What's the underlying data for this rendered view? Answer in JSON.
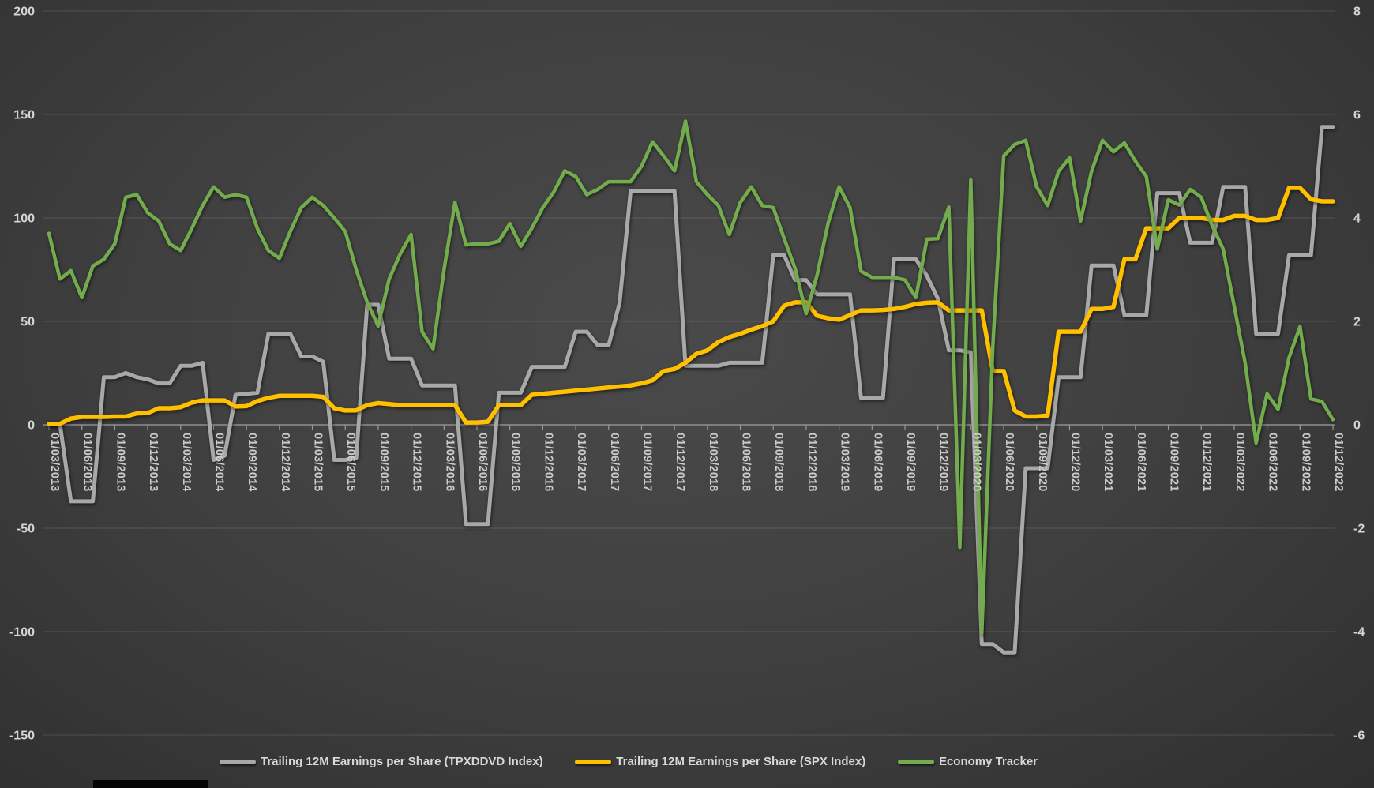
{
  "chart_data": {
    "type": "line",
    "title": "",
    "x_axis": {
      "tick_labels": [
        "01/03/2013",
        "01/06/2013",
        "01/09/2013",
        "01/12/2013",
        "01/03/2014",
        "01/06/2014",
        "01/09/2014",
        "01/12/2014",
        "01/03/2015",
        "01/06/2015",
        "01/09/2015",
        "01/12/2015",
        "01/03/2016",
        "01/06/2016",
        "01/09/2016",
        "01/12/2016",
        "01/03/2017",
        "01/06/2017",
        "01/09/2017",
        "01/12/2017",
        "01/03/2018",
        "01/06/2018",
        "01/09/2018",
        "01/12/2018",
        "01/03/2019",
        "01/06/2019",
        "01/09/2019",
        "01/12/2019",
        "01/03/2020",
        "01/06/2020",
        "01/09/2020",
        "01/12/2020",
        "01/03/2021",
        "01/06/2021",
        "01/09/2021",
        "01/12/2021",
        "01/03/2022",
        "01/06/2022",
        "01/09/2022",
        "01/12/2022"
      ],
      "months_per_label": 3,
      "label_rotation_deg": 90
    },
    "left_axis": {
      "ticks": [
        200,
        150,
        100,
        50,
        0,
        -50,
        -100,
        -150
      ],
      "range": [
        -150,
        200
      ]
    },
    "right_axis": {
      "ticks": [
        8,
        6,
        4,
        2,
        0,
        -2,
        -4,
        -6
      ],
      "range": [
        -6,
        8
      ]
    },
    "grid": "horizontal-only",
    "legend_position": "bottom",
    "series": [
      {
        "name": "Trailing 12M Earnings per Share (TPXDDVD Index)",
        "axis": "left",
        "color": "#a8a8a8",
        "values": [
          0.5,
          0.5,
          -37,
          -37,
          -37,
          23,
          23,
          25,
          23,
          22,
          20,
          20,
          28.5,
          28.5,
          30,
          -17,
          -15,
          14.5,
          15,
          15.5,
          44,
          44,
          44,
          33,
          33,
          30.5,
          -17,
          -17,
          -16,
          58,
          58,
          32,
          32,
          32,
          19,
          19,
          19,
          19,
          -48,
          -48,
          -48,
          15.5,
          15.5,
          15.5,
          28,
          28,
          28,
          28,
          45,
          45,
          38.5,
          38.5,
          59,
          113,
          113,
          113,
          113,
          113,
          28.5,
          28.5,
          28.5,
          28.5,
          30,
          30,
          30,
          30,
          82,
          82,
          70,
          70,
          63,
          63,
          63,
          63,
          13,
          13,
          13,
          80,
          80,
          80,
          72,
          61,
          36,
          36,
          35,
          -106,
          -106,
          -110,
          -110,
          -21,
          -21,
          -21,
          23,
          23,
          23,
          77,
          77,
          77,
          53,
          53,
          53,
          112,
          112,
          112,
          88,
          88,
          88,
          115,
          115,
          115,
          44,
          44,
          44,
          82,
          82,
          82,
          144,
          144
        ]
      },
      {
        "name": "Trailing 12M Earnings per Share (SPX Index)",
        "axis": "left",
        "color": "#ffc000",
        "values": [
          0.4,
          0.5,
          3,
          3.8,
          3.8,
          3.8,
          4,
          4,
          5.5,
          5.7,
          8,
          8,
          8.5,
          10.7,
          11.8,
          11.8,
          11.8,
          8.8,
          9,
          11.5,
          13,
          14,
          14,
          14,
          14,
          13.5,
          8,
          6.9,
          7,
          9.5,
          10.5,
          10,
          9.5,
          9.5,
          9.5,
          9.5,
          9.5,
          9.5,
          1.1,
          1.1,
          1.5,
          9.5,
          9.5,
          9.5,
          14.5,
          15,
          15.5,
          16,
          16.5,
          17,
          17.5,
          18,
          18.5,
          19,
          20,
          21.5,
          26,
          27,
          30,
          34.3,
          36,
          40,
          42.4,
          44,
          46,
          47.7,
          50,
          57.6,
          59.2,
          59.2,
          52.7,
          51.5,
          50.8,
          53,
          55.3,
          55.3,
          55.5,
          56,
          57,
          58.4,
          59,
          59.2,
          55.3,
          55.3,
          55.3,
          55.3,
          26,
          26,
          6.9,
          4,
          4,
          4.5,
          45,
          45,
          45,
          56,
          56,
          57,
          80,
          80,
          95,
          95,
          95,
          100,
          100,
          100,
          99,
          99,
          101,
          101,
          99,
          99,
          100,
          114.5,
          114.5,
          109,
          108,
          108
        ]
      },
      {
        "name": "Economy Tracker",
        "axis": "right",
        "color": "#72ac4c",
        "values": [
          3.7,
          2.82,
          2.98,
          2.46,
          3.07,
          3.2,
          3.5,
          4.4,
          4.45,
          4.1,
          3.94,
          3.5,
          3.37,
          3.79,
          4.24,
          4.6,
          4.4,
          4.45,
          4.4,
          3.79,
          3.37,
          3.22,
          3.74,
          4.2,
          4.4,
          4.24,
          4.0,
          3.74,
          3.0,
          2.37,
          1.91,
          2.82,
          3.3,
          3.68,
          1.8,
          1.47,
          3.0,
          4.3,
          3.48,
          3.5,
          3.5,
          3.55,
          3.89,
          3.45,
          3.8,
          4.2,
          4.5,
          4.91,
          4.8,
          4.45,
          4.55,
          4.7,
          4.7,
          4.7,
          5.0,
          5.47,
          5.2,
          4.91,
          5.87,
          4.7,
          4.45,
          4.24,
          3.68,
          4.3,
          4.6,
          4.24,
          4.2,
          3.6,
          3.02,
          2.15,
          2.9,
          3.9,
          4.6,
          4.2,
          2.97,
          2.85,
          2.85,
          2.85,
          2.8,
          2.46,
          3.59,
          3.6,
          4.21,
          -2.37,
          4.73,
          -4.03,
          1.5,
          5.2,
          5.42,
          5.5,
          4.6,
          4.24,
          4.9,
          5.16,
          3.94,
          4.9,
          5.5,
          5.28,
          5.45,
          5.1,
          4.8,
          3.4,
          4.35,
          4.25,
          4.55,
          4.4,
          3.85,
          3.4,
          2.3,
          1.2,
          -0.35,
          0.6,
          0.3,
          1.3,
          1.9,
          0.5,
          0.45,
          0.1
        ]
      }
    ],
    "legend": [
      "Trailing 12M Earnings per Share (TPXDDVD Index)",
      "Trailing 12M Earnings per Share (SPX Index)",
      "Economy Tracker"
    ]
  },
  "colors": {
    "background_center": "#4a4a4a",
    "background_edge": "#2b2b2b",
    "gridline": "rgba(255,255,255,0.13)",
    "zero_axis": "#8f8f8f",
    "axis_text": "#d6d6d6",
    "legend_text": "#d9d9d9",
    "series_gray": "#a8a8a8",
    "series_yellow": "#ffc000",
    "series_green": "#72ac4c"
  }
}
